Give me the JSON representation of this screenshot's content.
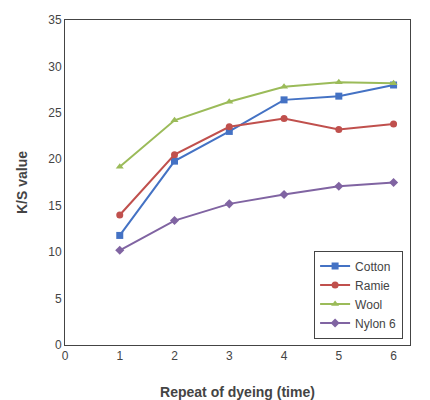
{
  "chart_data": {
    "type": "line",
    "xlabel": "Repeat of dyeing (time)",
    "ylabel": "K/S value",
    "x": [
      1,
      2,
      3,
      4,
      5,
      6
    ],
    "series": [
      {
        "name": "Cotton",
        "color": "#4472C4",
        "marker": "square",
        "values": [
          11.8,
          19.8,
          23.0,
          26.4,
          26.8,
          28.0
        ]
      },
      {
        "name": "Ramie",
        "color": "#C0504D",
        "marker": "circle",
        "values": [
          14.0,
          20.5,
          23.5,
          24.4,
          23.2,
          23.8
        ]
      },
      {
        "name": "Wool",
        "color": "#9BBB59",
        "marker": "triangle-up",
        "values": [
          19.2,
          24.2,
          26.2,
          27.8,
          28.3,
          28.2
        ]
      },
      {
        "name": "Nylon 6",
        "color": "#8064A2",
        "marker": "diamond",
        "values": [
          10.2,
          13.4,
          15.2,
          16.2,
          17.1,
          17.5
        ]
      }
    ],
    "xlim": [
      0,
      6.3
    ],
    "xticks": [
      0,
      1,
      2,
      3,
      4,
      5,
      6
    ],
    "ylim": [
      0,
      35
    ],
    "yticks": [
      0,
      5,
      10,
      15,
      20,
      25,
      30,
      35
    ],
    "grid": false,
    "legend": "lower right"
  }
}
